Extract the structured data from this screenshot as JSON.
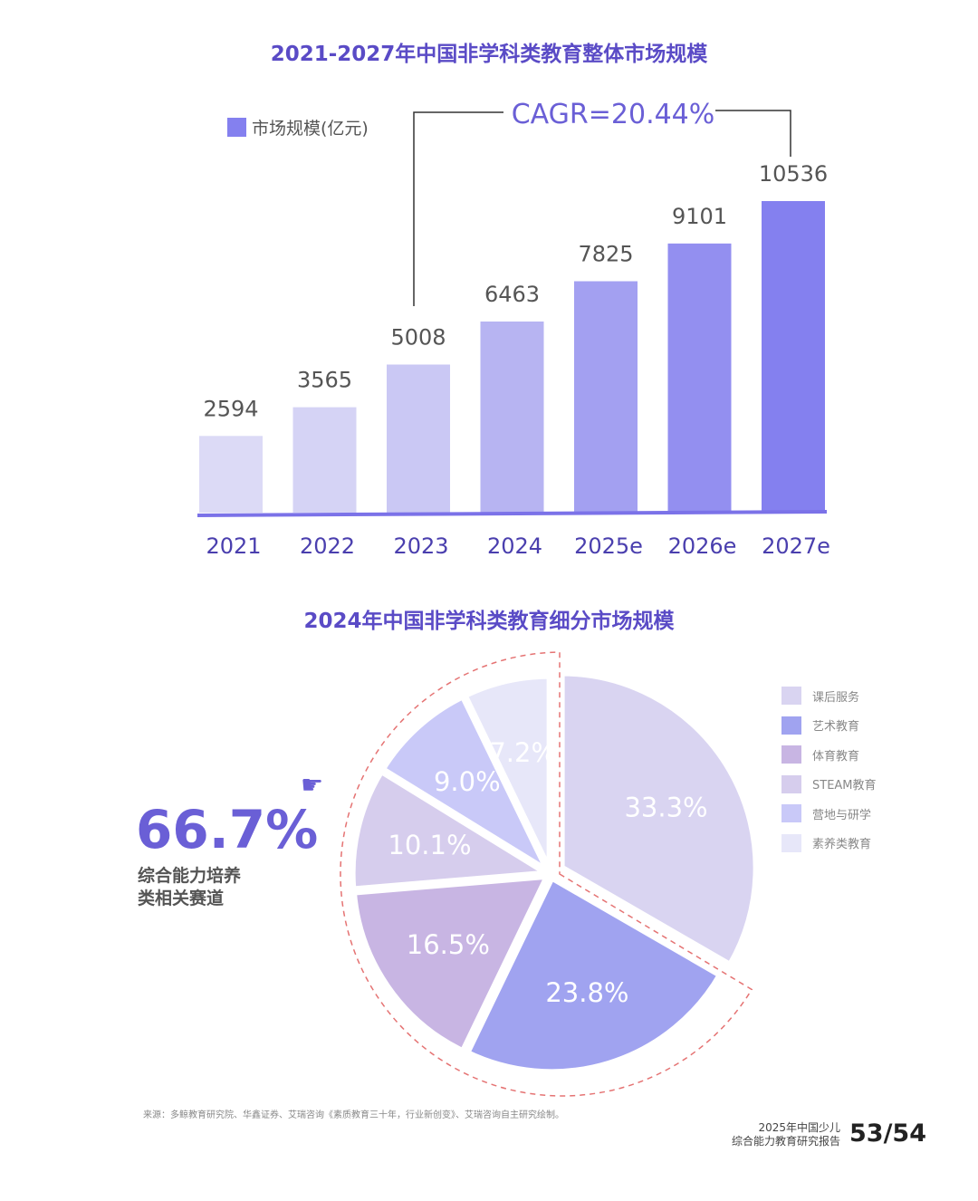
{
  "chart_data": [
    {
      "type": "bar",
      "title": "2021-2027年中国非学科类教育整体市场规模",
      "legend": "市场规模(亿元)",
      "annotation": "CAGR=20.44%",
      "categories": [
        "2021",
        "2022",
        "2023",
        "2024",
        "2025e",
        "2026e",
        "2027e"
      ],
      "values": [
        2594,
        3565,
        5008,
        6463,
        7825,
        9101,
        10536
      ],
      "colors": [
        "#dcdaf6",
        "#d5d3f5",
        "#cac8f4",
        "#b7b4f2",
        "#a3a0f1",
        "#938ff0",
        "#8480ef"
      ],
      "legend_color": "#8480ef",
      "axis_color": "#7b72e8",
      "grid": false
    },
    {
      "type": "pie",
      "title": "2024年中国非学科类教育细分市场规模",
      "labels": [
        "课后服务",
        "艺术教育",
        "体育教育",
        "STEAM教育",
        "营地与研学",
        "素养类教育"
      ],
      "values": [
        33.3,
        23.8,
        16.5,
        10.1,
        9.0,
        7.2
      ],
      "value_labels": [
        "33.3%",
        "23.8%",
        "16.5%",
        "10.1%",
        "9.0%",
        "7.2%"
      ],
      "colors": [
        "#d9d4f1",
        "#a0a3f0",
        "#c8b5e3",
        "#d6cded",
        "#c9c9f8",
        "#e7e7f9"
      ],
      "legend_placement": "right",
      "highlight": {
        "value": "66.7%",
        "caption_line1": "综合能力培养",
        "caption_line2": "类相关赛道",
        "icon": "pointing-hand-icon"
      }
    }
  ],
  "source": "来源：多鲸教育研究院、华鑫证券、艾瑞咨询《素质教育三十年，行业新创变》、艾瑞咨询自主研究绘制。",
  "footer": {
    "report_line1": "2025年中国少儿",
    "report_line2": "综合能力教育研究报告",
    "page": "53/54"
  }
}
